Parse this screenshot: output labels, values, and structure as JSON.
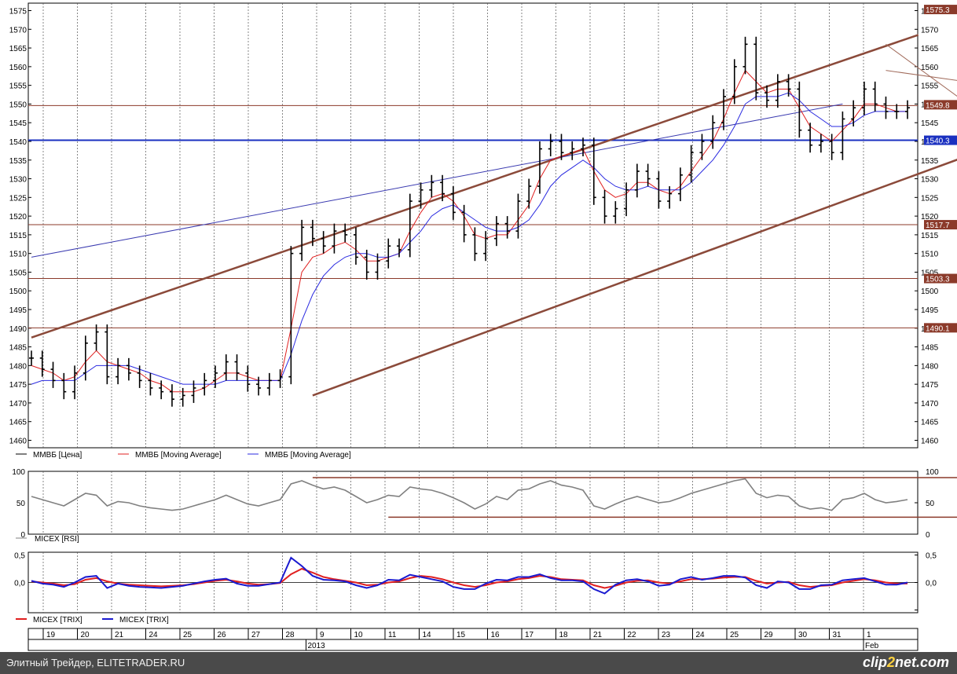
{
  "chart_data": [
    {
      "type": "candlestick",
      "panel": "price",
      "title": "",
      "ylim": [
        1458,
        1577
      ],
      "y_ticks": [
        1460,
        1465,
        1470,
        1475,
        1480,
        1485,
        1490,
        1495,
        1500,
        1505,
        1510,
        1515,
        1520,
        1525,
        1530,
        1535,
        1540,
        1545,
        1550,
        1555,
        1560,
        1565,
        1570,
        1575
      ],
      "series": [
        {
          "name": "ММВБ [Цена]",
          "color": "#000000",
          "values": [
            1482,
            1479,
            1476,
            1473,
            1478,
            1486,
            1489,
            1477,
            1480,
            1478,
            1476,
            1474,
            1473,
            1471,
            1472,
            1474,
            1476,
            1478,
            1481,
            1478,
            1475,
            1474,
            1476,
            1477,
            1510,
            1517,
            1514,
            1512,
            1516,
            1515,
            1509,
            1505,
            1508,
            1512,
            1511,
            1524,
            1527,
            1529,
            1526,
            1521,
            1515,
            1510,
            1514,
            1518,
            1516,
            1524,
            1528,
            1538,
            1540,
            1537,
            1538,
            1539,
            1525,
            1520,
            1522,
            1527,
            1532,
            1530,
            1524,
            1526,
            1531,
            1537,
            1540,
            1545,
            1552,
            1560,
            1566,
            1553,
            1551,
            1556,
            1554,
            1543,
            1539,
            1540,
            1537,
            1546,
            1549,
            1554,
            1550,
            1548,
            1548,
            1549
          ]
        },
        {
          "name": "ММВБ [Moving Average]",
          "color": "#e02020",
          "values": [
            1480,
            1479,
            1478,
            1476,
            1477,
            1481,
            1484,
            1481,
            1480,
            1479,
            1478,
            1476,
            1475,
            1473,
            1473,
            1473,
            1474,
            1476,
            1478,
            1478,
            1477,
            1476,
            1476,
            1476,
            1490,
            1505,
            1509,
            1510,
            1512,
            1513,
            1511,
            1508,
            1508,
            1509,
            1510,
            1516,
            1521,
            1525,
            1526,
            1524,
            1520,
            1515,
            1514,
            1515,
            1515,
            1519,
            1523,
            1530,
            1535,
            1536,
            1537,
            1538,
            1532,
            1527,
            1525,
            1526,
            1529,
            1529,
            1527,
            1526,
            1528,
            1532,
            1536,
            1540,
            1546,
            1553,
            1559,
            1556,
            1553,
            1554,
            1554,
            1549,
            1544,
            1542,
            1540,
            1543,
            1546,
            1550,
            1550,
            1549,
            1548,
            1548
          ]
        },
        {
          "name": "ММВБ [Moving Average]",
          "color": "#2a2ae0",
          "values": [
            1475,
            1476,
            1476,
            1476,
            1476,
            1478,
            1480,
            1480,
            1480,
            1480,
            1479,
            1478,
            1477,
            1476,
            1475,
            1475,
            1475,
            1475,
            1476,
            1476,
            1476,
            1476,
            1476,
            1476,
            1483,
            1492,
            1499,
            1504,
            1507,
            1509,
            1510,
            1510,
            1509,
            1509,
            1510,
            1513,
            1516,
            1520,
            1522,
            1523,
            1521,
            1519,
            1517,
            1516,
            1516,
            1517,
            1519,
            1523,
            1528,
            1531,
            1533,
            1535,
            1533,
            1530,
            1528,
            1527,
            1527,
            1528,
            1527,
            1527,
            1527,
            1529,
            1532,
            1535,
            1539,
            1544,
            1550,
            1552,
            1552,
            1552,
            1553,
            1551,
            1548,
            1546,
            1544,
            1544,
            1545,
            1547,
            1548,
            1548,
            1548,
            1548
          ]
        }
      ],
      "right_labels": [
        "1575.3",
        "1549.8",
        "1540.3",
        "1517.7",
        "1503.3",
        "1490.1"
      ],
      "horizontal_levels": [
        {
          "value": 1549.6,
          "color": "#8b3a2a"
        },
        {
          "value": 1540.3,
          "color": "#1a30c0"
        },
        {
          "value": 1517.7,
          "color": "#8b3a2a"
        },
        {
          "value": 1503.3,
          "color": "#8b3a2a"
        },
        {
          "value": 1490.1,
          "color": "#8b3a2a"
        }
      ],
      "trend_lines": [
        {
          "from": [
            0,
            1487.5
          ],
          "to": [
            82,
            1568.5
          ],
          "color": "#8b4a3a"
        },
        {
          "from": [
            26,
            1472
          ],
          "to": [
            94,
            1544
          ],
          "color": "#8b4a3a"
        },
        {
          "from": [
            0,
            1509
          ],
          "to": [
            75,
            1550
          ],
          "color": "#3a3ab0"
        },
        {
          "from": [
            79,
            1559
          ],
          "to": [
            90,
            1554.5
          ],
          "color": "#a06a5a"
        },
        {
          "from": [
            79,
            1566
          ],
          "to": [
            88,
            1547
          ],
          "color": "#a06a5a"
        }
      ]
    },
    {
      "type": "line",
      "panel": "rsi",
      "ylim": [
        0,
        100
      ],
      "y_ticks": [
        0,
        50,
        100
      ],
      "series": [
        {
          "name": "MICEX [RSI]",
          "color": "#808080",
          "values": [
            60,
            55,
            50,
            45,
            55,
            65,
            62,
            45,
            52,
            50,
            45,
            42,
            40,
            38,
            40,
            45,
            50,
            55,
            62,
            55,
            48,
            45,
            50,
            55,
            80,
            85,
            78,
            72,
            75,
            70,
            60,
            50,
            55,
            62,
            60,
            75,
            72,
            70,
            65,
            58,
            50,
            40,
            48,
            60,
            55,
            70,
            72,
            80,
            85,
            78,
            75,
            70,
            45,
            40,
            48,
            55,
            60,
            55,
            50,
            52,
            58,
            65,
            70,
            75,
            80,
            85,
            88,
            65,
            58,
            62,
            60,
            45,
            40,
            42,
            38,
            55,
            58,
            65,
            55,
            50,
            52,
            55
          ]
        }
      ],
      "horizontal_segments": [
        {
          "from": [
            26,
            90
          ],
          "to": [
            89,
            90
          ],
          "color": "#8b3a2a"
        },
        {
          "from": [
            33,
            27
          ],
          "to": [
            89,
            27
          ],
          "color": "#8b3a2a"
        }
      ]
    },
    {
      "type": "line",
      "panel": "trix",
      "ylim": [
        -0.55,
        0.55
      ],
      "y_ticks": [
        -0.5,
        0,
        0.5
      ],
      "y_tick_labels": [
        "",
        "0,0",
        "0,5"
      ],
      "y_tick_labels_left": [
        "0,5",
        "0,0"
      ],
      "series": [
        {
          "name": "MICEX [TRIX]",
          "color": "#e02020",
          "values": [
            0.02,
            0.0,
            -0.02,
            -0.05,
            -0.03,
            0.05,
            0.08,
            0.02,
            -0.02,
            -0.04,
            -0.05,
            -0.06,
            -0.07,
            -0.06,
            -0.05,
            -0.03,
            0.0,
            0.03,
            0.05,
            0.02,
            -0.02,
            -0.04,
            -0.03,
            -0.01,
            0.15,
            0.25,
            0.18,
            0.1,
            0.06,
            0.03,
            0.0,
            -0.05,
            -0.04,
            0.0,
            0.02,
            0.08,
            0.12,
            0.1,
            0.06,
            0.0,
            -0.05,
            -0.08,
            -0.05,
            0.0,
            0.02,
            0.06,
            0.08,
            0.12,
            0.1,
            0.06,
            0.05,
            0.04,
            -0.05,
            -0.1,
            -0.06,
            0.0,
            0.03,
            0.04,
            0.0,
            -0.02,
            0.02,
            0.06,
            0.06,
            0.07,
            0.09,
            0.1,
            0.1,
            0.03,
            -0.02,
            0.0,
            0.01,
            -0.05,
            -0.08,
            -0.06,
            -0.05,
            0.0,
            0.03,
            0.06,
            0.04,
            0.0,
            -0.02,
            -0.02
          ]
        },
        {
          "name": "MICEX [TRIX]",
          "color": "#1a1ad0",
          "values": [
            0.03,
            -0.02,
            -0.04,
            -0.08,
            0.0,
            0.1,
            0.12,
            -0.1,
            -0.02,
            -0.06,
            -0.08,
            -0.09,
            -0.1,
            -0.08,
            -0.06,
            -0.02,
            0.02,
            0.05,
            0.07,
            -0.02,
            -0.06,
            -0.06,
            -0.03,
            0.0,
            0.45,
            0.3,
            0.12,
            0.05,
            0.04,
            0.02,
            -0.05,
            -0.1,
            -0.05,
            0.05,
            0.04,
            0.14,
            0.1,
            0.06,
            0.02,
            -0.08,
            -0.12,
            -0.12,
            -0.02,
            0.05,
            0.04,
            0.1,
            0.1,
            0.15,
            0.08,
            0.04,
            0.04,
            0.02,
            -0.12,
            -0.2,
            -0.04,
            0.04,
            0.06,
            0.02,
            -0.06,
            -0.04,
            0.06,
            0.1,
            0.05,
            0.08,
            0.12,
            0.12,
            0.09,
            -0.05,
            -0.1,
            0.02,
            0.0,
            -0.12,
            -0.12,
            -0.05,
            -0.04,
            0.04,
            0.06,
            0.08,
            0.02,
            -0.04,
            -0.04,
            0.0
          ]
        }
      ]
    }
  ],
  "x_axis": {
    "day_labels": [
      "19",
      "20",
      "21",
      "24",
      "25",
      "26",
      "27",
      "28",
      "9",
      "10",
      "11",
      "14",
      "15",
      "16",
      "17",
      "18",
      "21",
      "22",
      "23",
      "24",
      "25",
      "29",
      "30",
      "31",
      "1"
    ],
    "month_labels": [
      "2013",
      "Feb"
    ]
  },
  "legends": {
    "price": [
      "ММВБ [Цена]",
      "ММВБ [Moving Average]",
      "ММВБ [Moving Average]"
    ],
    "rsi": [
      "MICEX [RSI]"
    ],
    "trix": [
      "MICEX [TRIX]",
      "MICEX [TRIX]"
    ]
  },
  "footer": {
    "site": "Элитный Трейдер, ELITETRADER.RU",
    "logo_a": "clip",
    "logo_b": "2",
    "logo_c": "net.com"
  }
}
